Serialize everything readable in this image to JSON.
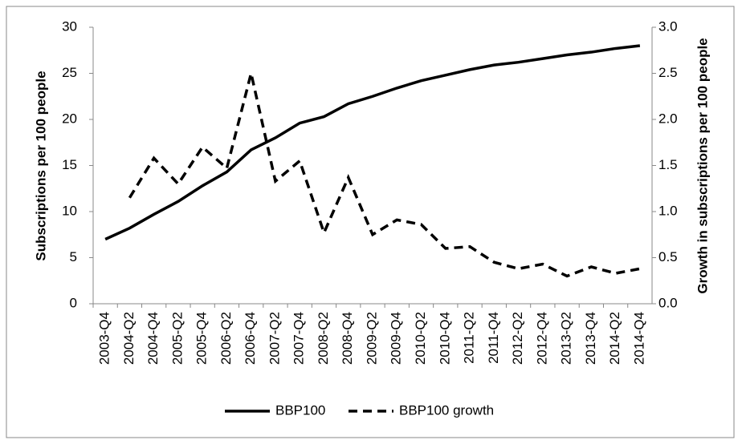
{
  "chart_data": {
    "type": "line",
    "categories": [
      "2003-Q4",
      "2004-Q2",
      "2004-Q4",
      "2005-Q2",
      "2005-Q4",
      "2006-Q2",
      "2006-Q4",
      "2007-Q2",
      "2007-Q4",
      "2008-Q2",
      "2008-Q4",
      "2009-Q2",
      "2009-Q4",
      "2010-Q2",
      "2010-Q4",
      "2011-Q2",
      "2011-Q4",
      "2012-Q2",
      "2012-Q4",
      "2013-Q2",
      "2013-Q4",
      "2014-Q2",
      "2014-Q4"
    ],
    "y_label": "Subscriptions per 100 people",
    "y2_label": "Growth in subscriptions per 100 people",
    "ylim": [
      0,
      30
    ],
    "yticks": [
      0,
      5,
      10,
      15,
      20,
      25,
      30
    ],
    "y2lim": [
      0,
      3
    ],
    "y2ticks": [
      {
        "value": 0,
        "label": "0.0"
      },
      {
        "value": 0.5,
        "label": "0.5"
      },
      {
        "value": 1,
        "label": "1.0"
      },
      {
        "value": 1.5,
        "label": "1.5"
      },
      {
        "value": 2,
        "label": "2.0"
      },
      {
        "value": 2.5,
        "label": "2.5"
      },
      {
        "value": 3,
        "label": "3.0"
      }
    ],
    "legend": "bottom",
    "series": [
      {
        "name": "BBP100",
        "color": "#000000",
        "dash": "solid",
        "values": [
          7.0,
          8.2,
          9.7,
          11.1,
          12.8,
          14.3,
          16.7,
          18.0,
          19.6,
          20.3,
          21.7,
          22.5,
          23.4,
          24.2,
          24.8,
          25.4,
          25.9,
          26.2,
          26.6,
          27.0,
          27.3,
          27.7,
          28.0
        ]
      },
      {
        "name": "BBP100 growth",
        "color": "#000000",
        "dash": "dashed",
        "axis": "y2",
        "values": [
          null,
          1.15,
          1.58,
          1.3,
          1.7,
          1.47,
          2.5,
          1.33,
          1.55,
          0.77,
          1.37,
          0.75,
          0.91,
          0.86,
          0.6,
          0.62,
          0.45,
          0.38,
          0.43,
          0.3,
          0.4,
          0.33,
          0.38
        ]
      }
    ]
  }
}
